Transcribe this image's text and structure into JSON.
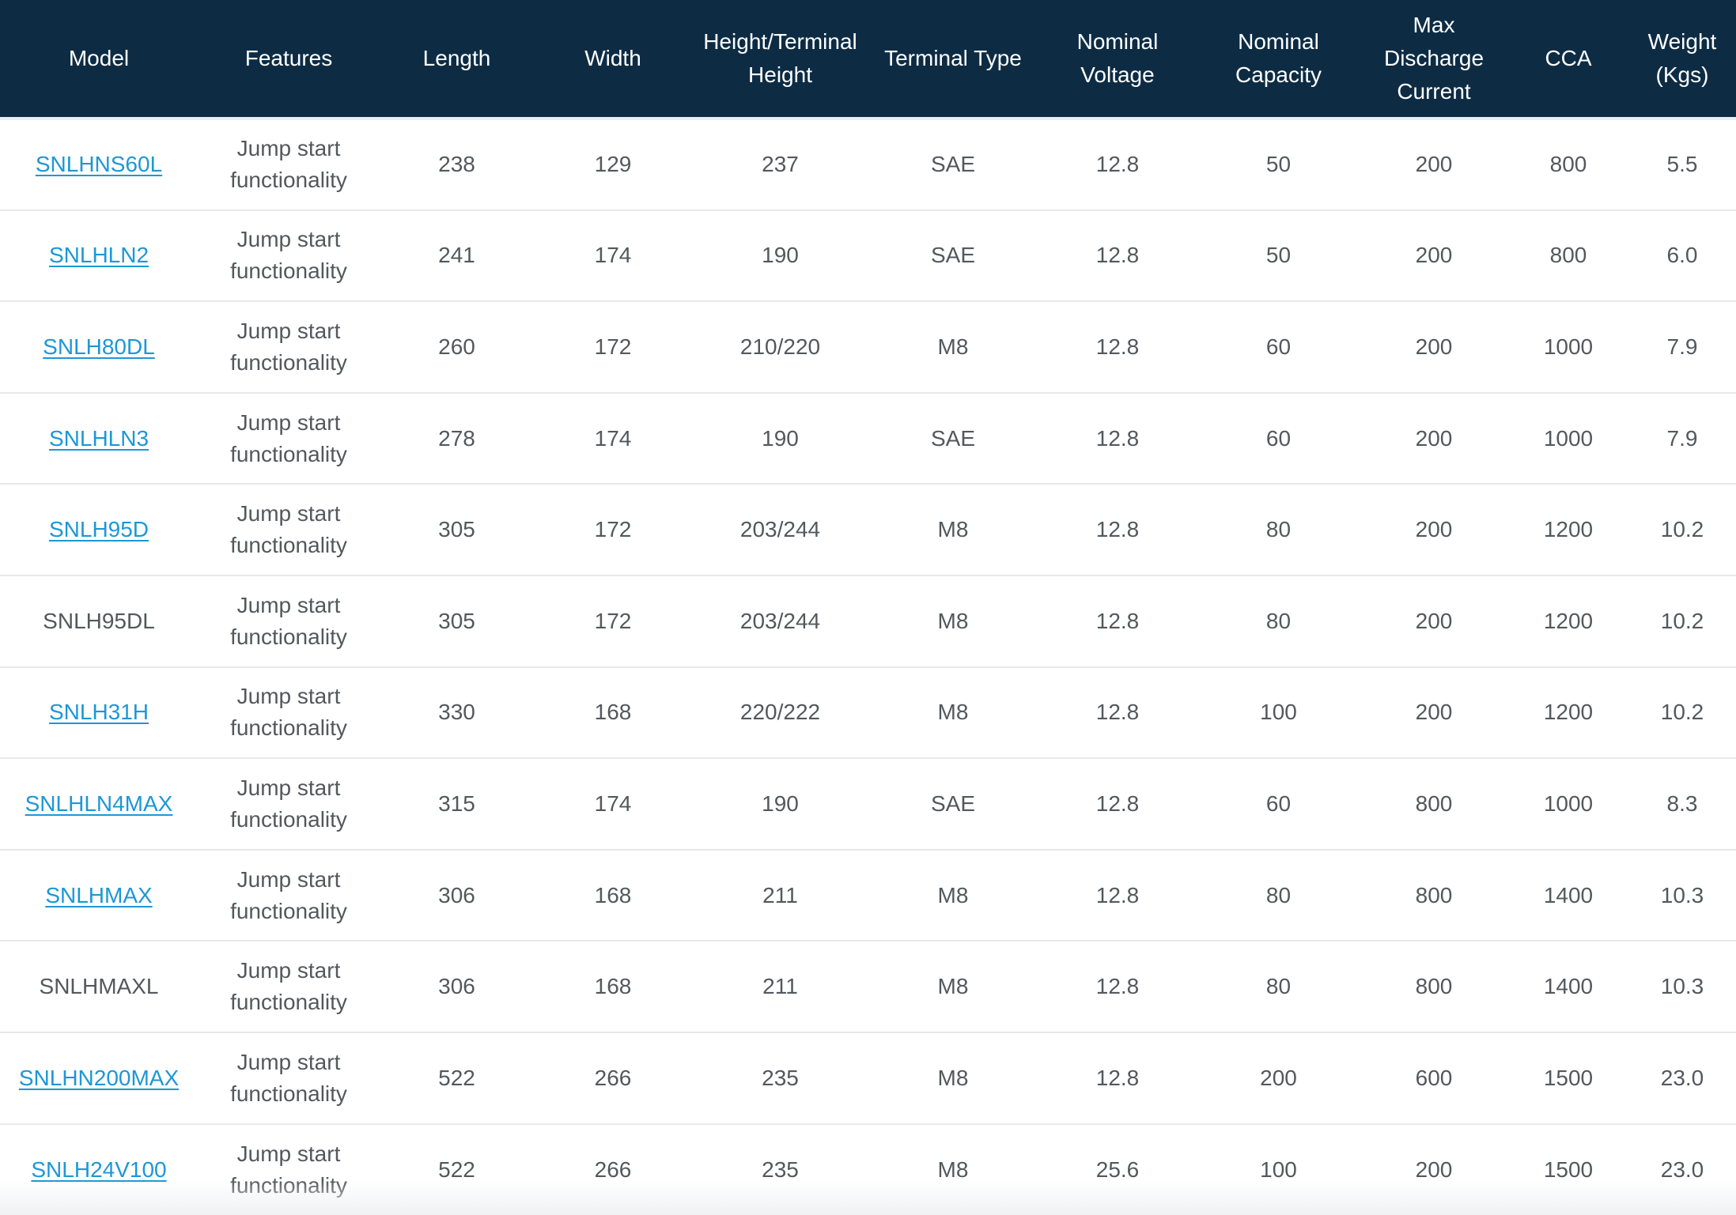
{
  "table": {
    "columns": [
      {
        "id": "model",
        "label": "Model"
      },
      {
        "id": "features",
        "label": "Features"
      },
      {
        "id": "length",
        "label": "Length"
      },
      {
        "id": "width",
        "label": "Width"
      },
      {
        "id": "height_terminal_height",
        "label": "Height/Terminal Height"
      },
      {
        "id": "terminal_type",
        "label": "Terminal Type"
      },
      {
        "id": "nominal_voltage",
        "label": "Nominal Voltage"
      },
      {
        "id": "nominal_capacity",
        "label": "Nominal Capacity"
      },
      {
        "id": "max_discharge_current",
        "label": "Max Discharge Current"
      },
      {
        "id": "cca",
        "label": "CCA"
      },
      {
        "id": "weight_kgs",
        "label": "Weight (Kgs)"
      }
    ],
    "rows": [
      {
        "model": "SNLHNS60L",
        "model_is_link": true,
        "features": "Jump start functionality",
        "length": "238",
        "width": "129",
        "height_terminal_height": "237",
        "terminal_type": "SAE",
        "nominal_voltage": "12.8",
        "nominal_capacity": "50",
        "max_discharge_current": "200",
        "cca": "800",
        "weight_kgs": "5.5"
      },
      {
        "model": "SNLHLN2",
        "model_is_link": true,
        "features": "Jump start functionality",
        "length": "241",
        "width": "174",
        "height_terminal_height": "190",
        "terminal_type": "SAE",
        "nominal_voltage": "12.8",
        "nominal_capacity": "50",
        "max_discharge_current": "200",
        "cca": "800",
        "weight_kgs": "6.0"
      },
      {
        "model": "SNLH80DL",
        "model_is_link": true,
        "features": "Jump start functionality",
        "length": "260",
        "width": "172",
        "height_terminal_height": "210/220",
        "terminal_type": "M8",
        "nominal_voltage": "12.8",
        "nominal_capacity": "60",
        "max_discharge_current": "200",
        "cca": "1000",
        "weight_kgs": "7.9"
      },
      {
        "model": "SNLHLN3",
        "model_is_link": true,
        "features": "Jump start functionality",
        "length": "278",
        "width": "174",
        "height_terminal_height": "190",
        "terminal_type": "SAE",
        "nominal_voltage": "12.8",
        "nominal_capacity": "60",
        "max_discharge_current": "200",
        "cca": "1000",
        "weight_kgs": "7.9"
      },
      {
        "model": "SNLH95D",
        "model_is_link": true,
        "features": "Jump start functionality",
        "length": "305",
        "width": "172",
        "height_terminal_height": "203/244",
        "terminal_type": "M8",
        "nominal_voltage": "12.8",
        "nominal_capacity": "80",
        "max_discharge_current": "200",
        "cca": "1200",
        "weight_kgs": "10.2"
      },
      {
        "model": "SNLH95DL",
        "model_is_link": false,
        "features": "Jump start functionality",
        "length": "305",
        "width": "172",
        "height_terminal_height": "203/244",
        "terminal_type": "M8",
        "nominal_voltage": "12.8",
        "nominal_capacity": "80",
        "max_discharge_current": "200",
        "cca": "1200",
        "weight_kgs": "10.2"
      },
      {
        "model": "SNLH31H",
        "model_is_link": true,
        "features": "Jump start functionality",
        "length": "330",
        "width": "168",
        "height_terminal_height": "220/222",
        "terminal_type": "M8",
        "nominal_voltage": "12.8",
        "nominal_capacity": "100",
        "max_discharge_current": "200",
        "cca": "1200",
        "weight_kgs": "10.2"
      },
      {
        "model": "SNLHLN4MAX",
        "model_is_link": true,
        "features": "Jump start functionality",
        "length": "315",
        "width": "174",
        "height_terminal_height": "190",
        "terminal_type": "SAE",
        "nominal_voltage": "12.8",
        "nominal_capacity": "60",
        "max_discharge_current": "800",
        "cca": "1000",
        "weight_kgs": "8.3"
      },
      {
        "model": "SNLHMAX",
        "model_is_link": true,
        "features": "Jump start functionality",
        "length": "306",
        "width": "168",
        "height_terminal_height": "211",
        "terminal_type": "M8",
        "nominal_voltage": "12.8",
        "nominal_capacity": "80",
        "max_discharge_current": "800",
        "cca": "1400",
        "weight_kgs": "10.3"
      },
      {
        "model": "SNLHMAXL",
        "model_is_link": false,
        "features": "Jump start functionality",
        "length": "306",
        "width": "168",
        "height_terminal_height": "211",
        "terminal_type": "M8",
        "nominal_voltage": "12.8",
        "nominal_capacity": "80",
        "max_discharge_current": "800",
        "cca": "1400",
        "weight_kgs": "10.3"
      },
      {
        "model": "SNLHN200MAX",
        "model_is_link": true,
        "features": "Jump start functionality",
        "length": "522",
        "width": "266",
        "height_terminal_height": "235",
        "terminal_type": "M8",
        "nominal_voltage": "12.8",
        "nominal_capacity": "200",
        "max_discharge_current": "600",
        "cca": "1500",
        "weight_kgs": "23.0"
      },
      {
        "model": "SNLH24V100",
        "model_is_link": true,
        "features": "Jump start functionality",
        "length": "522",
        "width": "266",
        "height_terminal_height": "235",
        "terminal_type": "M8",
        "nominal_voltage": "25.6",
        "nominal_capacity": "100",
        "max_discharge_current": "200",
        "cca": "1500",
        "weight_kgs": "23.0"
      }
    ]
  },
  "colors": {
    "header_background": "#0d2c44",
    "header_text": "#ffffff",
    "link": "#1d97d5",
    "cell_text": "#54585c",
    "row_divider": "#e6e8ea",
    "row_background": "#ffffff"
  }
}
